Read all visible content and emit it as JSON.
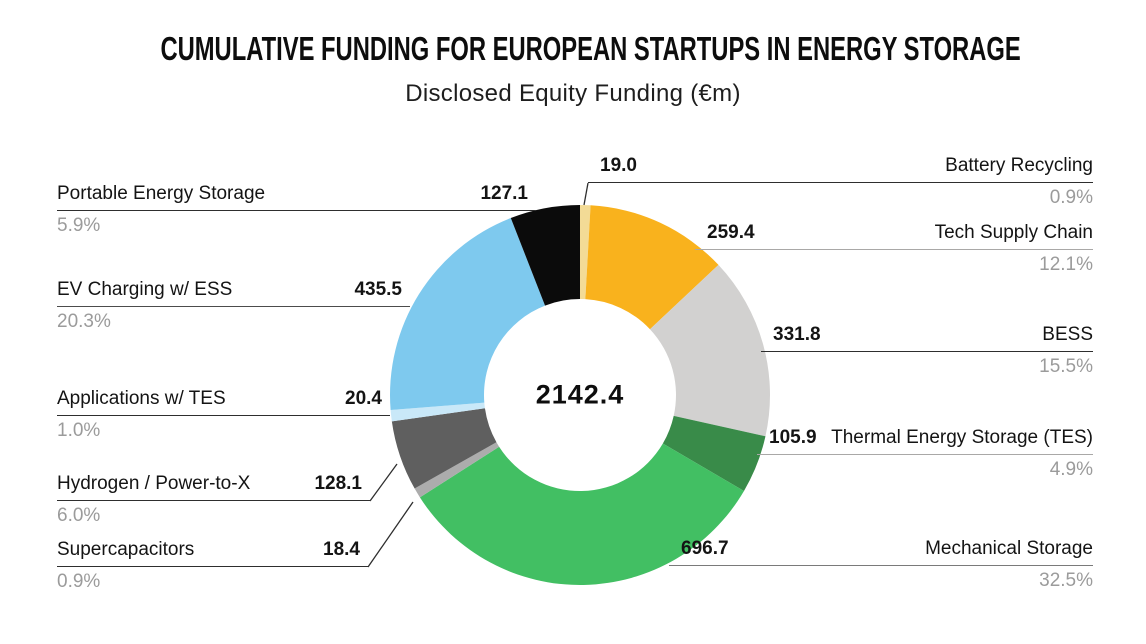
{
  "chart_data": {
    "type": "pie",
    "variant": "donut",
    "title": "CUMULATIVE FUNDING FOR EUROPEAN STARTUPS IN ENERGY STORAGE",
    "subtitle": "Disclosed Equity Funding (€m)",
    "center_total": "2142.4",
    "unit": "€m",
    "legend_position": "callout-labels-both-sides",
    "grid": false,
    "slices": [
      {
        "id": "battery-recycling",
        "label": "Battery Recycling",
        "value": 19.0,
        "value_label": "19.0",
        "pct_label": "0.9%",
        "color": "#F3DB96"
      },
      {
        "id": "tech-supply-chain",
        "label": "Tech Supply Chain",
        "value": 259.4,
        "value_label": "259.4",
        "pct_label": "12.1%",
        "color": "#F9B21D"
      },
      {
        "id": "bess",
        "label": "BESS",
        "value": 331.8,
        "value_label": "331.8",
        "pct_label": "15.5%",
        "color": "#D2D1D0"
      },
      {
        "id": "thermal-energy-storage",
        "label": "Thermal Energy Storage (TES)",
        "value": 105.9,
        "value_label": "105.9",
        "pct_label": "4.9%",
        "color": "#398B49"
      },
      {
        "id": "mechanical-storage",
        "label": "Mechanical Storage",
        "value": 696.7,
        "value_label": "696.7",
        "pct_label": "32.5%",
        "color": "#42BF63"
      },
      {
        "id": "supercapacitors",
        "label": "Supercapacitors",
        "value": 18.4,
        "value_label": "18.4",
        "pct_label": "0.9%",
        "color": "#ACACAC"
      },
      {
        "id": "hydrogen-power-to-x",
        "label": "Hydrogen / Power-to-X",
        "value": 128.1,
        "value_label": "128.1",
        "pct_label": "6.0%",
        "color": "#5F5F5F"
      },
      {
        "id": "applications-w-tes",
        "label": "Applications w/ TES",
        "value": 20.4,
        "value_label": "20.4",
        "pct_label": "1.0%",
        "color": "#C9E8F8"
      },
      {
        "id": "ev-charging-w-ess",
        "label": "EV Charging w/ ESS",
        "value": 435.5,
        "value_label": "435.5",
        "pct_label": "20.3%",
        "color": "#7EC9EE"
      },
      {
        "id": "portable-energy-storage",
        "label": "Portable Energy Storage",
        "value": 127.1,
        "value_label": "127.1",
        "pct_label": "5.9%",
        "color": "#0B0B0B"
      }
    ]
  }
}
